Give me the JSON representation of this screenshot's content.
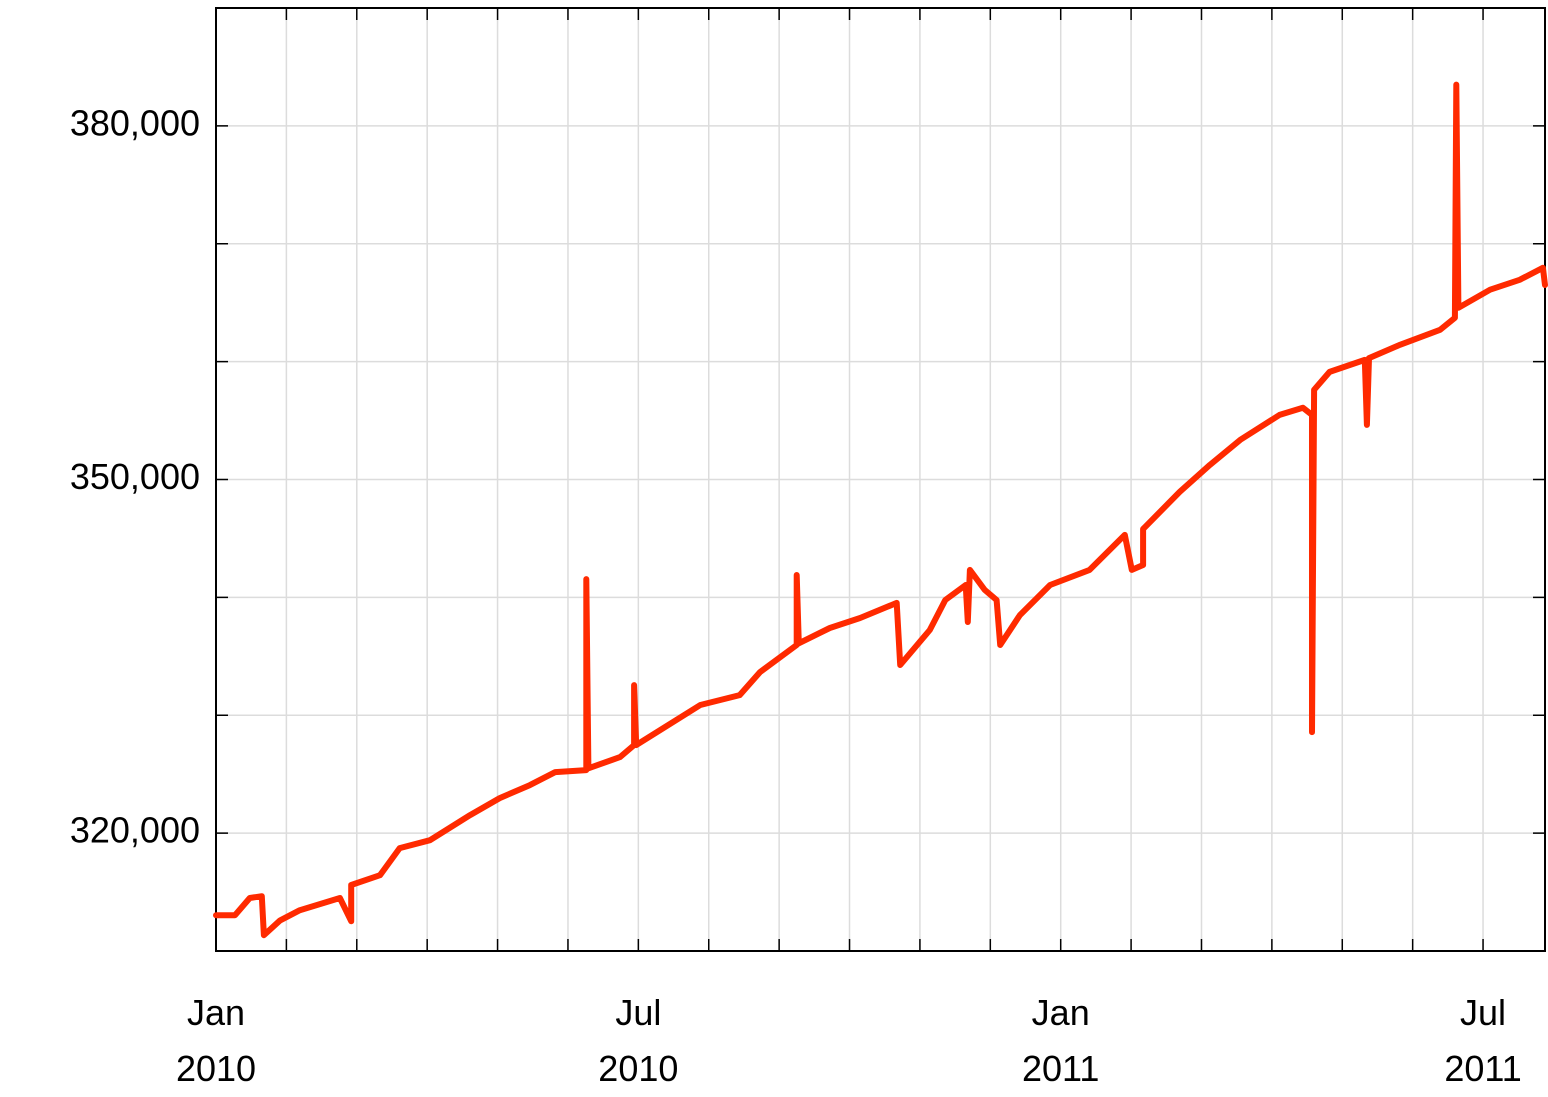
{
  "chart_data": {
    "type": "line",
    "x": [
      0,
      0.27,
      0.48,
      0.65,
      0.68,
      0.91,
      1.19,
      1.76,
      1.92,
      1.92,
      2.33,
      2.61,
      3.04,
      3.61,
      4.03,
      4.46,
      4.82,
      5.26,
      5.26,
      5.29,
      5.74,
      5.94,
      5.94,
      5.97,
      6.31,
      6.88,
      7.44,
      7.73,
      8.25,
      8.25,
      8.28,
      8.72,
      9.15,
      9.67,
      9.72,
      10.14,
      10.36,
      10.65,
      10.68,
      10.71,
      10.92,
      11.09,
      11.14,
      11.42,
      11.85,
      12.41,
      12.91,
      13.01,
      13.17,
      13.17,
      13.69,
      14.12,
      14.55,
      15.11,
      15.44,
      15.57,
      15.57,
      15.6,
      15.82,
      16.32,
      16.35,
      16.38,
      16.82,
      17.39,
      17.6,
      17.62,
      17.65,
      18.1,
      18.52,
      18.85,
      18.88
    ],
    "series": [
      {
        "color": "#ff2a00",
        "values": [
          313040,
          313040,
          314500,
          314650,
          311340,
          312600,
          313460,
          314500,
          312530,
          315600,
          316430,
          318730,
          319400,
          321530,
          322970,
          324070,
          325180,
          325350,
          341550,
          325500,
          326450,
          327470,
          332560,
          327470,
          328740,
          330870,
          331710,
          333670,
          335960,
          341900,
          336100,
          337400,
          338250,
          339530,
          334260,
          337230,
          339780,
          341050,
          337910,
          342330,
          340630,
          339780,
          335960,
          338500,
          341050,
          342330,
          345300,
          342330,
          342750,
          345800,
          348950,
          351240,
          353360,
          355480,
          356080,
          355480,
          328570,
          357610,
          359130,
          360150,
          354630,
          360300,
          361430,
          362700,
          363720,
          383500,
          364570,
          366100,
          366940,
          367960,
          366500
        ]
      }
    ],
    "xlim": [
      0,
      18.88
    ],
    "xticks": [
      {
        "value": 0,
        "label": "Jan\n2010"
      },
      {
        "value": 6,
        "label": "Jul\n2010"
      },
      {
        "value": 12,
        "label": "Jan\n2011"
      },
      {
        "value": 18,
        "label": "Jul\n2011"
      }
    ],
    "xminor": [
      1,
      2,
      3,
      4,
      5,
      7,
      8,
      9,
      10,
      11,
      13,
      14,
      15,
      16,
      17
    ],
    "ylim": [
      310000,
      390000
    ],
    "yticks": [
      {
        "value": 320000,
        "label": "320,000"
      },
      {
        "value": 350000,
        "label": "350,000"
      },
      {
        "value": 380000,
        "label": "380,000"
      }
    ],
    "yminor": [
      330000,
      340000,
      360000,
      370000
    ],
    "grid": true
  }
}
